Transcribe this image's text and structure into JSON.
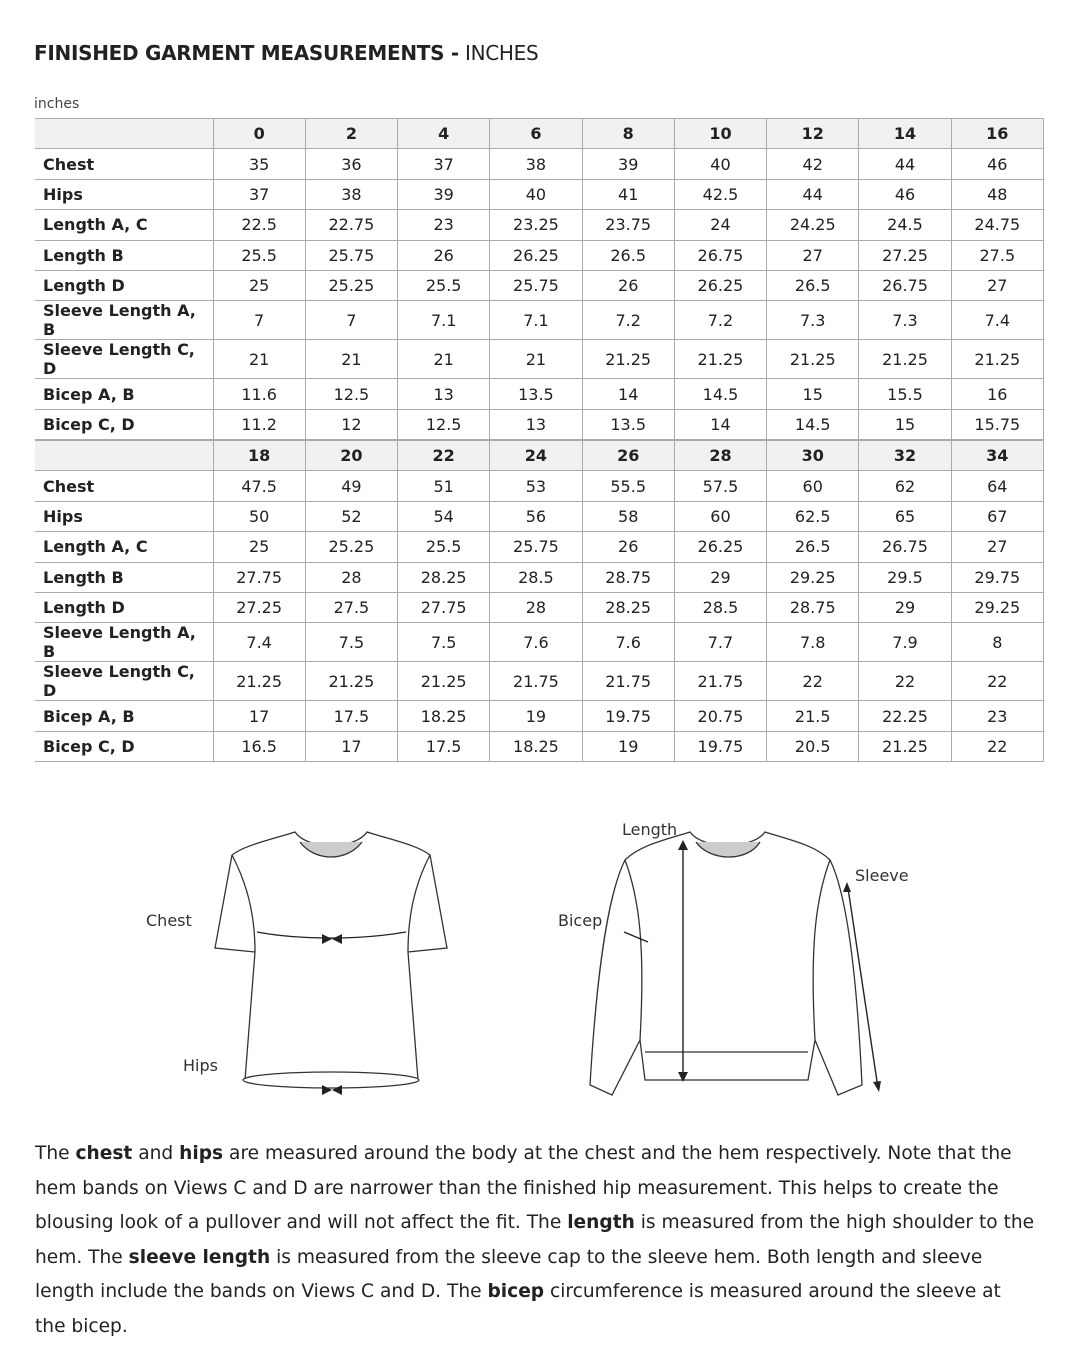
{
  "title": {
    "bold": "FINISHED GARMENT MEASUREMENTS -",
    "normal": "INCHES"
  },
  "unit_label": "inches",
  "row_labels": [
    "Chest",
    "Hips",
    "Length A, C",
    "Length B",
    "Length D",
    "Sleeve Length A, B",
    "Sleeve Length C, D",
    "Bicep A, B",
    "Bicep C, D"
  ],
  "tables": [
    {
      "sizes": [
        "0",
        "2",
        "4",
        "6",
        "8",
        "10",
        "12",
        "14",
        "16"
      ],
      "rows": [
        [
          "35",
          "36",
          "37",
          "38",
          "39",
          "40",
          "42",
          "44",
          "46"
        ],
        [
          "37",
          "38",
          "39",
          "40",
          "41",
          "42.5",
          "44",
          "46",
          "48"
        ],
        [
          "22.5",
          "22.75",
          "23",
          "23.25",
          "23.75",
          "24",
          "24.25",
          "24.5",
          "24.75"
        ],
        [
          "25.5",
          "25.75",
          "26",
          "26.25",
          "26.5",
          "26.75",
          "27",
          "27.25",
          "27.5"
        ],
        [
          "25",
          "25.25",
          "25.5",
          "25.75",
          "26",
          "26.25",
          "26.5",
          "26.75",
          "27"
        ],
        [
          "7",
          "7",
          "7.1",
          "7.1",
          "7.2",
          "7.2",
          "7.3",
          "7.3",
          "7.4"
        ],
        [
          "21",
          "21",
          "21",
          "21",
          "21.25",
          "21.25",
          "21.25",
          "21.25",
          "21.25"
        ],
        [
          "11.6",
          "12.5",
          "13",
          "13.5",
          "14",
          "14.5",
          "15",
          "15.5",
          "16"
        ],
        [
          "11.2",
          "12",
          "12.5",
          "13",
          "13.5",
          "14",
          "14.5",
          "15",
          "15.75"
        ]
      ]
    },
    {
      "sizes": [
        "18",
        "20",
        "22",
        "24",
        "26",
        "28",
        "30",
        "32",
        "34"
      ],
      "rows": [
        [
          "47.5",
          "49",
          "51",
          "53",
          "55.5",
          "57.5",
          "60",
          "62",
          "64"
        ],
        [
          "50",
          "52",
          "54",
          "56",
          "58",
          "60",
          "62.5",
          "65",
          "67"
        ],
        [
          "25",
          "25.25",
          "25.5",
          "25.75",
          "26",
          "26.25",
          "26.5",
          "26.75",
          "27"
        ],
        [
          "27.75",
          "28",
          "28.25",
          "28.5",
          "28.75",
          "29",
          "29.25",
          "29.5",
          "29.75"
        ],
        [
          "27.25",
          "27.5",
          "27.75",
          "28",
          "28.25",
          "28.5",
          "28.75",
          "29",
          "29.25"
        ],
        [
          "7.4",
          "7.5",
          "7.5",
          "7.6",
          "7.6",
          "7.7",
          "7.8",
          "7.9",
          "8"
        ],
        [
          "21.25",
          "21.25",
          "21.25",
          "21.75",
          "21.75",
          "21.75",
          "22",
          "22",
          "22"
        ],
        [
          "17",
          "17.5",
          "18.25",
          "19",
          "19.75",
          "20.75",
          "21.5",
          "22.25",
          "23"
        ],
        [
          "16.5",
          "17",
          "17.5",
          "18.25",
          "19",
          "19.75",
          "20.5",
          "21.25",
          "22"
        ]
      ]
    }
  ],
  "figure": {
    "chest": "Chest",
    "hips": "Hips",
    "length": "Length",
    "sleeve": "Sleeve",
    "bicep": "Bicep"
  },
  "paragraph": [
    {
      "t": "The ",
      "b": false
    },
    {
      "t": "chest",
      "b": true
    },
    {
      "t": " and ",
      "b": false
    },
    {
      "t": "hips",
      "b": true
    },
    {
      "t": " are measured around the body at the chest and the hem respectively. Note that the hem bands on Views C and D are narrower than the finished hip measurement. This helps to create the blousing look of a pullover and will not affect the fit. The ",
      "b": false
    },
    {
      "t": "length",
      "b": true
    },
    {
      "t": " is measured from the high shoulder to the hem. The ",
      "b": false
    },
    {
      "t": "sleeve length",
      "b": true
    },
    {
      "t": " is measured from the sleeve cap to the sleeve hem. Both length and sleeve length include the bands on Views C and D. The ",
      "b": false
    },
    {
      "t": "bicep",
      "b": true
    },
    {
      "t": " circumference is measured around the sleeve at the bicep.",
      "b": false
    }
  ]
}
